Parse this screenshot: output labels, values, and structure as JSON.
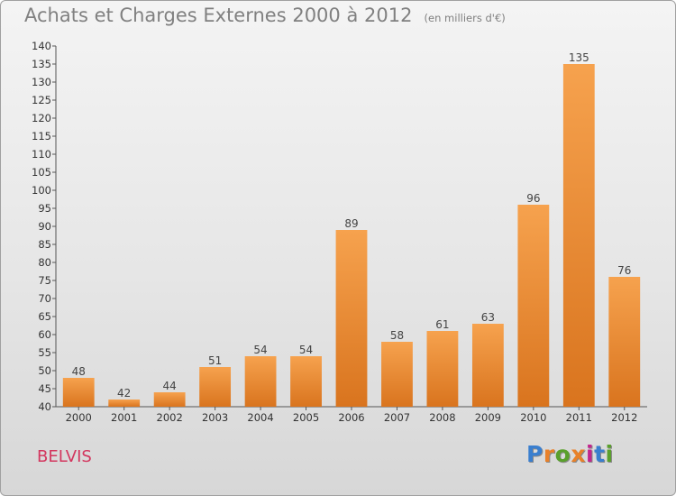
{
  "title": "Achats et Charges Externes 2000 à 2012",
  "subtitle": "(en milliers d'€)",
  "commune": "BELVIS",
  "logo_text": "Proxiti",
  "colors": {
    "bar_light": "#f6a24e",
    "bar_dark": "#d9741e",
    "commune": "#d3365e",
    "logo": [
      "#3a7fcf",
      "#e8812a",
      "#5aa02c",
      "#e8812a",
      "#c2268e",
      "#3a7fcf",
      "#5aa02c"
    ]
  },
  "chart_data": {
    "type": "bar",
    "title": "Achats et Charges Externes 2000 à 2012",
    "categories": [
      "2000",
      "2001",
      "2002",
      "2003",
      "2004",
      "2005",
      "2006",
      "2007",
      "2008",
      "2009",
      "2010",
      "2011",
      "2012"
    ],
    "values": [
      48,
      42,
      44,
      51,
      54,
      54,
      89,
      58,
      61,
      63,
      96,
      135,
      76
    ],
    "ylim": [
      40,
      140
    ],
    "yticks": [
      40,
      45,
      50,
      55,
      60,
      65,
      70,
      75,
      80,
      85,
      90,
      95,
      100,
      105,
      110,
      115,
      120,
      125,
      130,
      135,
      140
    ],
    "xlabel": "",
    "ylabel": "",
    "grid": false,
    "data_labels": true
  }
}
